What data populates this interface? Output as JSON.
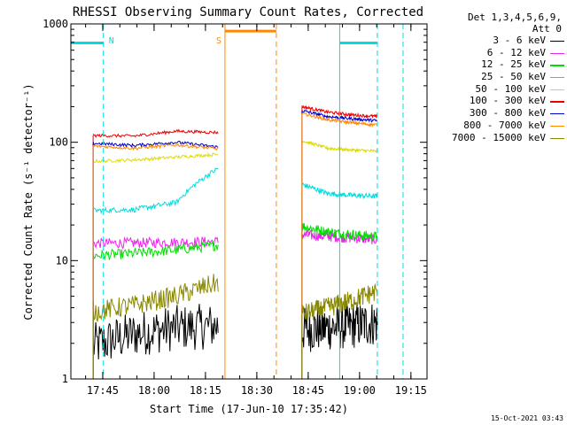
{
  "chart_data": {
    "type": "line",
    "title": "RHESSI Observing Summary Count Rates, Corrected",
    "xlabel": "Start Time (17-Jun-10 17:35:42)",
    "ylabel": "Corrected Count Rate (s⁻¹ detector⁻¹)",
    "x_unit": "minutes after 17:35:42",
    "xlim": [
      0,
      104
    ],
    "ylim": [
      1,
      1000
    ],
    "yscale": "log",
    "x_ticks": [
      "17:45",
      "18:00",
      "18:15",
      "18:30",
      "18:45",
      "19:00",
      "19:15"
    ],
    "x_tick_minutes": [
      9.3,
      24.3,
      39.3,
      54.3,
      69.3,
      84.3,
      99.3
    ],
    "y_ticks": [
      "1",
      "10",
      "100",
      "1000"
    ],
    "y_tick_values": [
      1,
      10,
      100,
      1000
    ],
    "legend_header": [
      "Det 1,3,4,5,6,9,",
      "Att 0"
    ],
    "segments": [
      {
        "name": "first interval",
        "x_start": 6.5,
        "x_end": 43.0
      },
      {
        "name": "second interval",
        "x_start": 67.5,
        "x_end": 89.5
      }
    ],
    "series": [
      {
        "name": "3 - 6 keV",
        "color": "#000000",
        "values_first": [
          1.9,
          2.4,
          2.7,
          2.8
        ],
        "values_second": [
          2.6,
          2.7,
          2.8,
          3.0
        ]
      },
      {
        "name": "6 - 12 keV",
        "color": "#ee22ee",
        "values_first": [
          14.0,
          14.1,
          14.3,
          14.5
        ],
        "values_second": [
          16.5,
          16.0,
          15.5,
          15.0
        ]
      },
      {
        "name": "12 - 25 keV",
        "color": "#00dd00",
        "values_first": [
          11.0,
          11.5,
          12.3,
          13.5
        ],
        "values_second": [
          19.5,
          17.5,
          16.5,
          16.0
        ]
      },
      {
        "name": "25 - 50 keV",
        "color": "#00dddd",
        "values_first": [
          26.5,
          27.0,
          31.0,
          60.0
        ],
        "values_second": [
          44.0,
          37.0,
          35.5,
          35.0
        ]
      },
      {
        "name": "50 - 100 keV",
        "color": "#dddd00",
        "values_first": [
          69.0,
          71.0,
          75.0,
          79.0
        ],
        "values_second": [
          103.0,
          89.0,
          86.0,
          84.0
        ]
      },
      {
        "name": "100 - 300 keV",
        "color": "#ee0000",
        "values_first": [
          114.0,
          113.0,
          124.0,
          121.0
        ],
        "values_second": [
          200.0,
          180.0,
          170.0,
          165.0
        ]
      },
      {
        "name": "300 - 800 keV",
        "color": "#0000cc",
        "values_first": [
          98.0,
          94.0,
          100.0,
          91.0
        ],
        "values_second": [
          185.0,
          165.0,
          158.0,
          152.0
        ]
      },
      {
        "name": "800 - 7000 keV",
        "color": "#ff8800",
        "values_first": [
          93.0,
          89.0,
          95.0,
          88.0
        ],
        "values_second": [
          175.0,
          155.0,
          146.0,
          140.0
        ]
      },
      {
        "name": "7000 - 15000 keV",
        "color": "#888800",
        "values_first": [
          3.7,
          4.2,
          5.0,
          6.5
        ],
        "values_second": [
          3.5,
          4.0,
          4.6,
          5.5
        ]
      }
    ],
    "markers": [
      {
        "label": "N",
        "color": "#00dddd",
        "bar_start": 0,
        "bar_end": 9.5,
        "bar_value": 690,
        "boundaries": [
          9.5,
          78.5,
          89.5,
          97.0
        ],
        "solid": [
          78.5
        ],
        "dashed": [
          9.5,
          89.5,
          97.0
        ]
      },
      {
        "label": "S",
        "color": "#ff8800",
        "bar_start": 45.0,
        "bar_end": 60.0,
        "bar_value": 870,
        "boundaries": [
          45.0,
          60.0
        ],
        "solid": [
          45.0
        ],
        "dashed": [
          60.0
        ]
      }
    ],
    "footer": "15-Oct-2021 03:43"
  }
}
